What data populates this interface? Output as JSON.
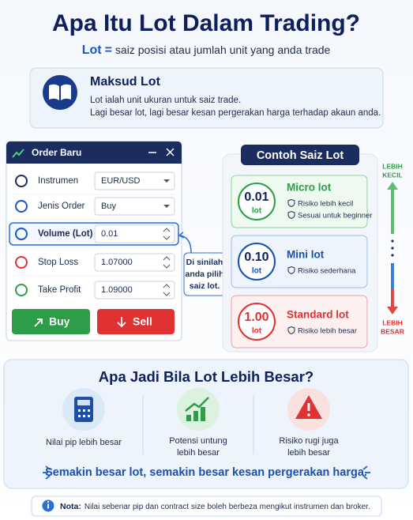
{
  "header": {
    "title": "Apa Itu Lot Dalam Trading?",
    "term": "Lot",
    "sign": "=",
    "subtitle": "saiz posisi atau jumlah unit yang anda trade"
  },
  "definition": {
    "title": "Maksud Lot",
    "lines": [
      "Lot ialah unit ukuran untuk saiz trade.",
      "Lagi besar lot, lagi besar kesan pergerakan harga terhadap akaun anda."
    ]
  },
  "order": {
    "title": "Order Baru",
    "rows": [
      {
        "label": "Instrumen",
        "value": "EUR/USD"
      },
      {
        "label": "Jenis Order",
        "value": "Buy"
      },
      {
        "label": "Volume (Lot)",
        "value": "0.01"
      },
      {
        "label": "Stop Loss",
        "value": "1.07000"
      },
      {
        "label": "Take Profit",
        "value": "1.09000"
      }
    ],
    "buy": "Buy",
    "sell": "Sell",
    "callout": [
      "Di sinilah",
      "anda pilih",
      "saiz lot."
    ]
  },
  "examples": {
    "title": "Contoh Saiz Lot",
    "cards": [
      {
        "value": "0.01",
        "unit": "lot",
        "name": "Micro lot",
        "notes": [
          "Risiko lebih kecil",
          "Sesuai untuk beginner"
        ]
      },
      {
        "value": "0.10",
        "unit": "lot",
        "name": "Mini lot",
        "notes": [
          "Risiko sederhana"
        ]
      },
      {
        "value": "1.00",
        "unit": "lot",
        "name": "Standard lot",
        "notes": [
          "Risiko lebih besar"
        ]
      }
    ],
    "scale_top": [
      "LEBIH",
      "KECIL"
    ],
    "scale_bottom": [
      "LEBIH",
      "BESAR"
    ]
  },
  "effects": {
    "title": "Apa Jadi Bila Lot Lebih Besar?",
    "items": [
      [
        "Nilai pip lebih besar"
      ],
      [
        "Potensi untung",
        "lebih besar"
      ],
      [
        "Risiko rugi juga",
        "lebih besar"
      ]
    ],
    "conclusion": "Semakin besar lot, semakin besar kesan pergerakan harga."
  },
  "note": {
    "label": "Nota:",
    "text": "Nilai sebenar pip dan contract size boleh berbeza mengikut instrumen dan broker."
  }
}
